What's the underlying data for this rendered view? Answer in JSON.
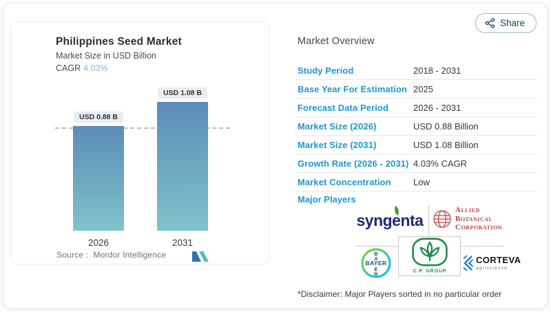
{
  "share": {
    "label": "Share"
  },
  "chart_data": {
    "type": "bar",
    "title": "Philippines Seed Market",
    "subtitle": "Market Size in USD Billion",
    "cagr_label": "CAGR",
    "cagr_value": "4.03%",
    "categories": [
      "2026",
      "2031"
    ],
    "values": [
      0.88,
      1.08
    ],
    "bar_labels": [
      "USD 0.88 B",
      "USD 1.08 B"
    ],
    "reference_line_value": 0.88,
    "ylim": [
      0,
      1.25
    ],
    "grid": false,
    "legend": "none",
    "bar_color_top": "#5b8cb8",
    "bar_color_bottom": "#7fc3ca"
  },
  "source": {
    "label": "Source :",
    "name": "Mordor Intelligence"
  },
  "overview": {
    "heading": "Market Overview",
    "rows": [
      {
        "label": "Study Period",
        "value": "2018 - 2031"
      },
      {
        "label": "Base Year For Estimation",
        "value": "2025"
      },
      {
        "label": "Forecast Data Period",
        "value": "2026 - 2031"
      },
      {
        "label": "Market Size (2026)",
        "value": "USD 0.88 Billion"
      },
      {
        "label": "Market Size (2031)",
        "value": "USD 1.08 Billion"
      },
      {
        "label": "Growth Rate (2026 - 2031)",
        "value": "4.03% CAGR"
      },
      {
        "label": "Market Concentration",
        "value": "Low"
      }
    ],
    "disclaimer": "*Disclaimer: Major Players sorted in no particular order"
  },
  "major_players": {
    "label": "Major Players",
    "syngenta": {
      "name": "syngenta"
    },
    "allied": {
      "lines": [
        "Allied",
        "Botanical",
        "Corporation"
      ]
    },
    "bayer": {
      "word": "BAYER",
      "vertical": [
        "B",
        "A",
        "E",
        "R"
      ]
    },
    "cp": {
      "name": "C.P. GROUP"
    },
    "corteva": {
      "name": "CORTEVA",
      "sub": "agriscience"
    }
  },
  "colors": {
    "accent_blue": "#1e96cf",
    "cagr_blue": "#86b3d6",
    "navy": "#16425b",
    "syngenta_navy": "#1e2a78",
    "allied_red": "#bf4040",
    "cp_green": "#1e8a4a",
    "corteva_blue": "#0072ce",
    "mordor_dark": "#2f71ae",
    "mordor_teal": "#4fb9c6"
  }
}
